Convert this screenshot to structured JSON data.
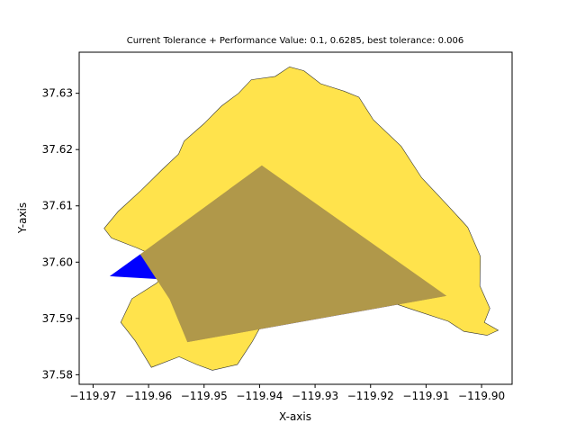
{
  "chart_data": {
    "type": "area",
    "title": "Current Tolerance + Performance Value: 0.1, 0.6285, best tolerance: 0.006",
    "xlabel": "X-axis",
    "ylabel": "Y-axis",
    "xlim": [
      -119.9725,
      -119.8945
    ],
    "ylim": [
      37.5783,
      37.6373
    ],
    "xticks": [
      -119.97,
      -119.96,
      -119.95,
      -119.94,
      -119.93,
      -119.92,
      -119.91,
      -119.9
    ],
    "xtick_labels": [
      "−119.97",
      "−119.96",
      "−119.95",
      "−119.94",
      "−119.93",
      "−119.92",
      "−119.91",
      "−119.90"
    ],
    "yticks": [
      37.58,
      37.59,
      37.6,
      37.61,
      37.62,
      37.63
    ],
    "ytick_labels": [
      "37.58",
      "37.59",
      "37.60",
      "37.61",
      "37.62",
      "37.63"
    ],
    "grid": false,
    "legend": "none",
    "series": [
      {
        "kind": "blue-polygon",
        "color": "#0000ff",
        "points": [
          [
            -119.967,
            37.5975
          ],
          [
            -119.9615,
            37.6014
          ],
          [
            -119.9555,
            37.5934
          ],
          [
            -119.953,
            37.5858
          ],
          [
            -119.9063,
            37.594
          ]
        ]
      },
      {
        "kind": "yellow-region",
        "color": "#ffd700",
        "alpha": 0.7,
        "points": [
          [
            -119.9546,
            37.6192
          ],
          [
            -119.9536,
            37.6215
          ],
          [
            -119.95,
            37.6246
          ],
          [
            -119.9469,
            37.6277
          ],
          [
            -119.9438,
            37.63
          ],
          [
            -119.9415,
            37.6324
          ],
          [
            -119.9372,
            37.633
          ],
          [
            -119.9346,
            37.6347
          ],
          [
            -119.932,
            37.634
          ],
          [
            -119.929,
            37.6317
          ],
          [
            -119.9248,
            37.6304
          ],
          [
            -119.9221,
            37.6293
          ],
          [
            -119.9195,
            37.6253
          ],
          [
            -119.9145,
            37.6206
          ],
          [
            -119.9108,
            37.615
          ],
          [
            -119.9063,
            37.6103
          ],
          [
            -119.9025,
            37.6062
          ],
          [
            -119.9002,
            37.601
          ],
          [
            -119.9003,
            37.5958
          ],
          [
            -119.8985,
            37.5918
          ],
          [
            -119.8995,
            37.5893
          ],
          [
            -119.897,
            37.5879
          ],
          [
            -119.899,
            37.587
          ],
          [
            -119.9032,
            37.5877
          ],
          [
            -119.906,
            37.5895
          ],
          [
            -119.9128,
            37.5917
          ],
          [
            -119.9167,
            37.593
          ],
          [
            -119.92,
            37.5934
          ],
          [
            -119.923,
            37.5928
          ],
          [
            -119.928,
            37.5917
          ],
          [
            -119.933,
            37.5914
          ],
          [
            -119.9394,
            37.5893
          ],
          [
            -119.9413,
            37.5859
          ],
          [
            -119.944,
            37.5818
          ],
          [
            -119.9485,
            37.5808
          ],
          [
            -119.9513,
            37.5818
          ],
          [
            -119.9545,
            37.5832
          ],
          [
            -119.9595,
            37.5813
          ],
          [
            -119.9624,
            37.586
          ],
          [
            -119.965,
            37.5893
          ],
          [
            -119.963,
            37.5935
          ],
          [
            -119.9585,
            37.5963
          ],
          [
            -119.956,
            37.5998
          ],
          [
            -119.962,
            37.6025
          ],
          [
            -119.9667,
            37.6043
          ],
          [
            -119.968,
            37.606
          ],
          [
            -119.9655,
            37.609
          ],
          [
            -119.9613,
            37.6128
          ],
          [
            -119.9575,
            37.6165
          ]
        ]
      },
      {
        "kind": "overlap-polygon",
        "color": "#b0984a",
        "points": [
          [
            -119.9396,
            37.6172
          ],
          [
            -119.9063,
            37.594
          ],
          [
            -119.953,
            37.5858
          ],
          [
            -119.9562,
            37.5934
          ],
          [
            -119.9615,
            37.6014
          ]
        ]
      }
    ]
  }
}
